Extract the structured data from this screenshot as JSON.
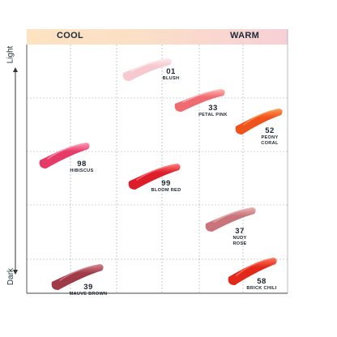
{
  "header": {
    "cool_label": "COOL",
    "warm_label": "WARM"
  },
  "axis": {
    "top_label": "Light",
    "bottom_label": "Dark"
  },
  "swatches": [
    {
      "id": "blush",
      "number": "01",
      "name": "BLUSH",
      "color": "#f6c9cf",
      "highlight": "#fde9ec"
    },
    {
      "id": "petal-pink",
      "number": "33",
      "name": "PETAL PINK",
      "color": "#ef6b72",
      "highlight": "#ffb3b3"
    },
    {
      "id": "peony-coral",
      "number": "52",
      "name": "PEONY CORAL",
      "color": "#f0521c",
      "highlight": "#ff9a55"
    },
    {
      "id": "hibiscus",
      "number": "98",
      "name": "HIBISCUS",
      "color": "#e63a68",
      "highlight": "#ff9ab5"
    },
    {
      "id": "bloom-red",
      "number": "99",
      "name": "BLOOM RED",
      "color": "#dd1d2a",
      "highlight": "#ff7c7c"
    },
    {
      "id": "nudy-rose",
      "number": "37",
      "name": "NUDY ROSE",
      "color": "#c8747a",
      "highlight": "#eab1b3"
    },
    {
      "id": "mauve-brown",
      "number": "39",
      "name": "MAUVE BROWN",
      "color": "#a03a48",
      "highlight": "#d68591"
    },
    {
      "id": "brick-chili",
      "number": "58",
      "name": "BRICK CHILI",
      "color": "#e2281a",
      "highlight": "#ff7a5e"
    }
  ]
}
